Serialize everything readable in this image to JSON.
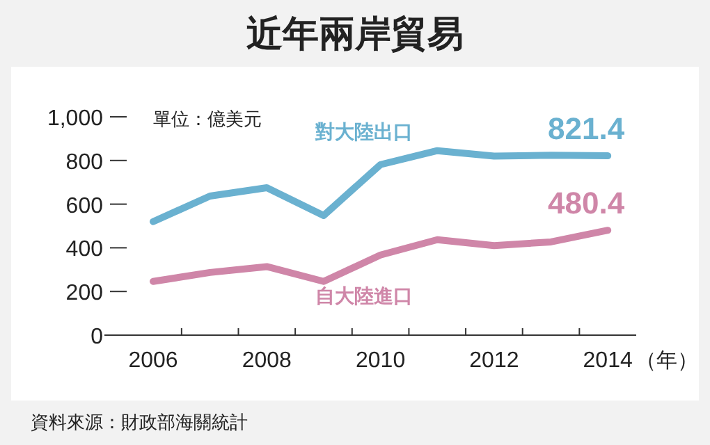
{
  "chart_data": {
    "type": "line",
    "title": "近年兩岸貿易",
    "xlabel": "（年）",
    "annotations": [
      "單位：億美元",
      "資料來源：財政部海關統計"
    ],
    "categories": [
      "2006",
      null,
      "2008",
      null,
      "2010",
      null,
      "2012",
      null,
      "2014"
    ],
    "ylim": [
      0,
      1000
    ],
    "yticks": [
      0,
      200,
      400,
      600,
      800,
      {
        "value": 1000,
        "label": "1,000"
      }
    ],
    "grid": false,
    "legend": false,
    "marker": "none",
    "line_style": "solid",
    "series": [
      {
        "name": "對大陸出口",
        "color": "#6ab1d0",
        "values": [
          520,
          637,
          675,
          548,
          781,
          845,
          820,
          824,
          821.4
        ],
        "value_labels": [
          null,
          null,
          null,
          null,
          null,
          null,
          null,
          null,
          "821.4"
        ]
      },
      {
        "name": "自大陸進口",
        "color": "#cf86a8",
        "values": [
          246,
          287,
          314,
          246,
          367,
          437,
          410,
          427,
          480.4
        ],
        "value_labels": [
          null,
          null,
          null,
          null,
          null,
          null,
          null,
          null,
          "480.4"
        ]
      }
    ]
  }
}
